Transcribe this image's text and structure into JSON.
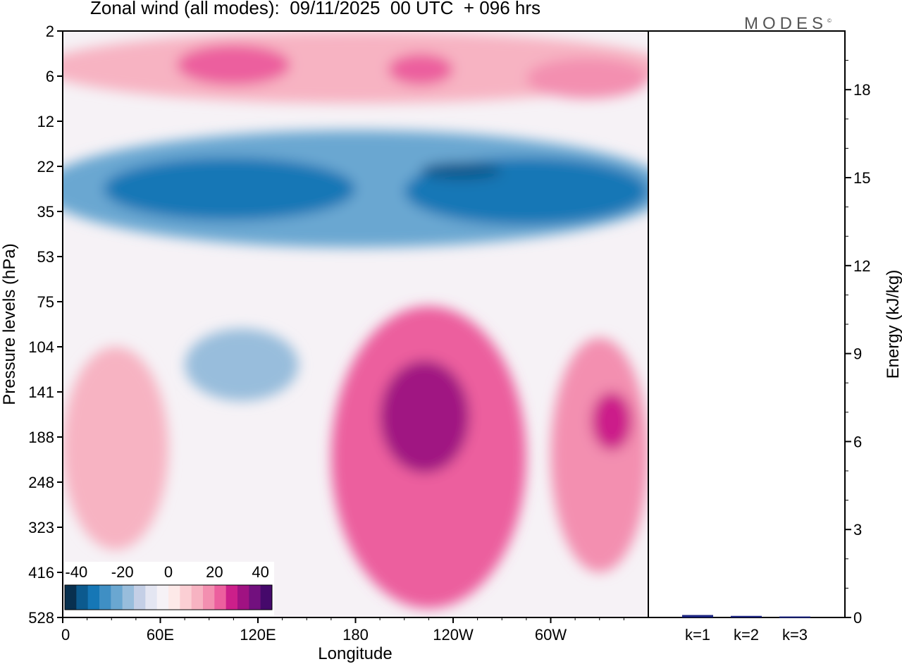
{
  "chart_data": [
    {
      "type": "heatmap",
      "title": "Zonal wind (all modes):  09/11/2025  00 UTC  + 096 hrs",
      "xlabel": "Longitude",
      "ylabel": "Pressure levels (hPa)",
      "x_ticks": [
        "0",
        "60E",
        "120E",
        "180",
        "120W",
        "60W"
      ],
      "y_ticks": [
        "2",
        "6",
        "12",
        "22",
        "35",
        "53",
        "75",
        "104",
        "141",
        "188",
        "248",
        "323",
        "416",
        "528"
      ],
      "colorbar": {
        "tick_labels": [
          "-40",
          "-20",
          "0",
          "20",
          "40"
        ],
        "levels": [
          -40,
          -35,
          -30,
          -25,
          -20,
          -15,
          -10,
          -5,
          0,
          5,
          10,
          15,
          20,
          25,
          30,
          35,
          40
        ],
        "colors": [
          "#08304f",
          "#0c5a8e",
          "#1677b6",
          "#3f8fc4",
          "#6aa7d1",
          "#98bddc",
          "#c4cfe6",
          "#e4e6f2",
          "#f6f2f6",
          "#fde9e8",
          "#fbcfd4",
          "#f7b3c2",
          "#f38fb0",
          "#ec5f9e",
          "#cc1f8a",
          "#a01282",
          "#72107e",
          "#45096b"
        ]
      },
      "wind_features": [
        {
          "name": "upper positive layer",
          "lon": [
            0,
            360
          ],
          "level_index": [
            0,
            1.6
          ],
          "value": 12
        },
        {
          "name": "upper positive core A",
          "lon": [
            70,
            140
          ],
          "level_index": [
            0.3,
            1.2
          ],
          "value": 22
        },
        {
          "name": "upper positive core B",
          "lon": [
            200,
            240
          ],
          "level_index": [
            0.5,
            1.2
          ],
          "value": 20
        },
        {
          "name": "upper positive core C",
          "lon": [
            285,
            360
          ],
          "level_index": [
            0.6,
            1.5
          ],
          "value": 16
        },
        {
          "name": "easterly jet",
          "lon": [
            0,
            360
          ],
          "level_index": [
            2.2,
            4.8
          ],
          "value": -25
        },
        {
          "name": "easterly jet core A",
          "lon": [
            25,
            180
          ],
          "level_index": [
            2.8,
            4.2
          ],
          "value": -32
        },
        {
          "name": "easterly jet core B",
          "lon": [
            210,
            360
          ],
          "level_index": [
            2.8,
            4.3
          ],
          "value": -32
        },
        {
          "name": "easterly jet minimum",
          "lon": [
            220,
            270
          ],
          "level_index": [
            2.9,
            3.3
          ],
          "value": -38
        },
        {
          "name": "mid-level easterly pocket",
          "lon": [
            75,
            145
          ],
          "level_index": [
            6.6,
            8.2
          ],
          "value": -18
        },
        {
          "name": "westerly jet",
          "lon": [
            165,
            285
          ],
          "level_index": [
            6.1,
            12.8
          ],
          "value": 22
        },
        {
          "name": "westerly jet core",
          "lon": [
            195,
            250
          ],
          "level_index": [
            7.3,
            9.8
          ],
          "value": 30
        },
        {
          "name": "west positive region",
          "lon": [
            0,
            65
          ],
          "level_index": [
            7.0,
            11.5
          ],
          "value": 12
        },
        {
          "name": "east positive region",
          "lon": [
            300,
            360
          ],
          "level_index": [
            6.8,
            12.0
          ],
          "value": 18
        },
        {
          "name": "east positive core",
          "lon": [
            325,
            350
          ],
          "level_index": [
            8.0,
            9.3
          ],
          "value": 25
        }
      ]
    },
    {
      "type": "bar",
      "title": "",
      "xlabel": "",
      "ylabel": "Energy (kJ/kg)",
      "categories": [
        "k=1",
        "k=2",
        "k=3"
      ],
      "values": [
        0.06,
        0.03,
        0.01
      ],
      "ylim": [
        0,
        20
      ],
      "y_ticks": [
        "0",
        "3",
        "6",
        "9",
        "12",
        "15",
        "18"
      ],
      "bar_color": "#1a237e"
    }
  ],
  "brand": "MODES",
  "brand_mark": "©"
}
